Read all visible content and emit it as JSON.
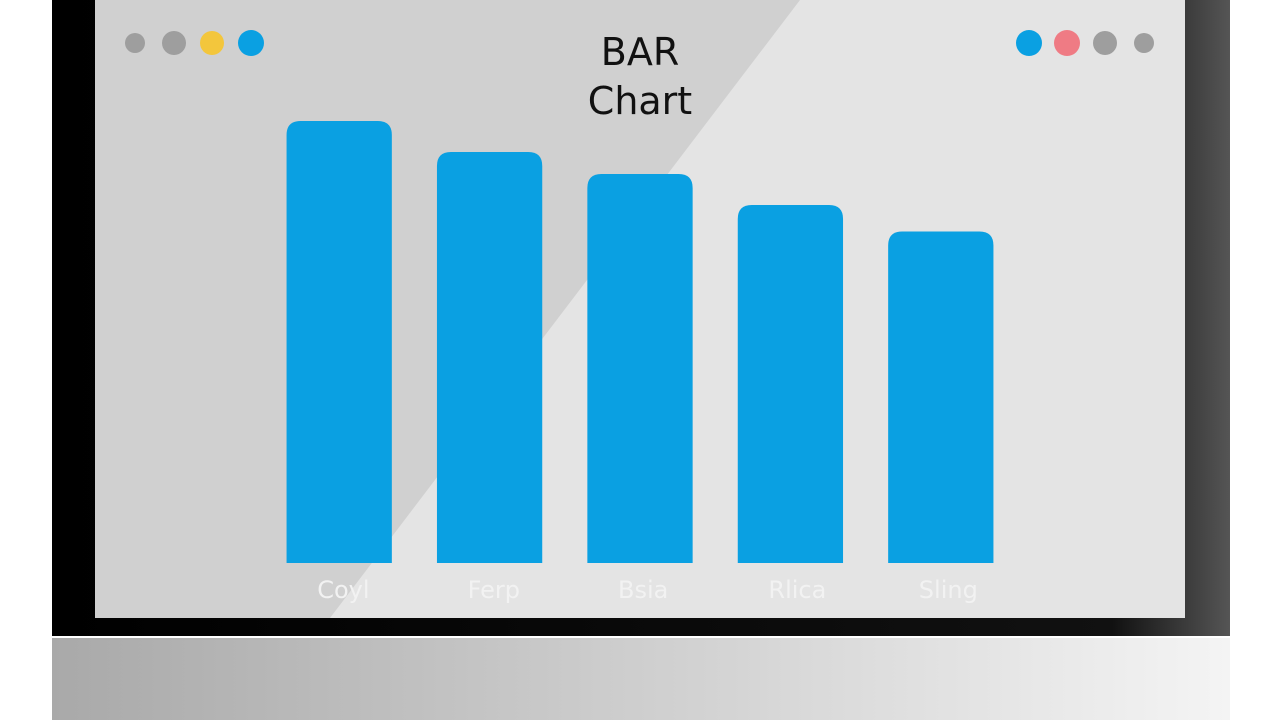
{
  "chart_data": {
    "type": "bar",
    "title": "BAR Chart",
    "categories": [
      "Coyl",
      "Ferp",
      "Bsia",
      "Rlica",
      "Sling"
    ],
    "values": [
      100,
      93,
      88,
      81,
      75
    ],
    "color": "#0aa0e2",
    "ylim": [
      0,
      100
    ]
  }
}
